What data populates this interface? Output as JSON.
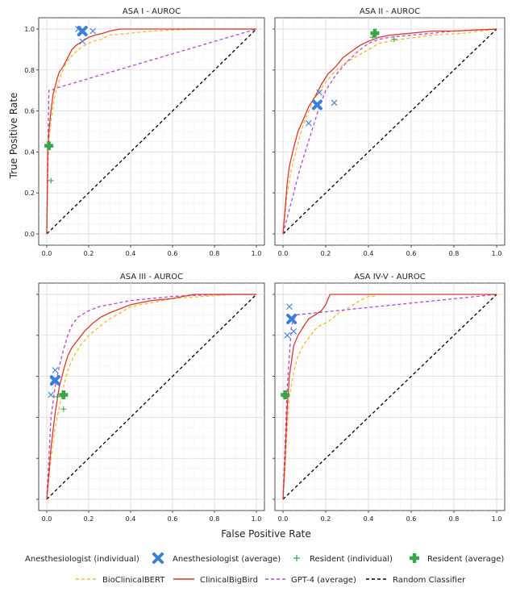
{
  "figure": {
    "xlabel": "False Positive Rate",
    "ylabel": "True Positive Rate"
  },
  "colors": {
    "bioclinicalbert": "#f5b82e",
    "clinicalbigbird": "#d9372b",
    "gpt4": "#b04ad6",
    "random": "#000000",
    "anesthesiologist": "#3b7fd8",
    "resident": "#3aa64a"
  },
  "legend": {
    "row1": [
      {
        "key": "anest_ind",
        "label": "Anesthesiologist (individual)"
      },
      {
        "key": "anest_avg",
        "label": "Anesthesiologist (average)"
      },
      {
        "key": "res_ind",
        "label": "Resident (individual)"
      },
      {
        "key": "res_avg",
        "label": "Resident (average)"
      }
    ],
    "row2": [
      {
        "key": "bioclinicalbert",
        "label": "BioClinicalBERT"
      },
      {
        "key": "clinicalbigbird",
        "label": "ClinicalBigBird"
      },
      {
        "key": "gpt4",
        "label": "GPT-4 (average)"
      },
      {
        "key": "random",
        "label": "Random Classifier"
      }
    ]
  },
  "chart_data": [
    {
      "type": "line",
      "title": "ASA I - AUROC",
      "xlabel": "False Positive Rate",
      "ylabel": "True Positive Rate",
      "xlim": [
        0,
        1
      ],
      "ylim": [
        0,
        1
      ],
      "xticks": [
        0.0,
        0.2,
        0.4,
        0.6,
        0.8,
        1.0
      ],
      "yticks": [
        0.0,
        0.2,
        0.4,
        0.6,
        0.8,
        1.0
      ],
      "show_xtick_labels": true,
      "show_ytick_labels": true,
      "series": [
        {
          "name": "BioClinicalBERT",
          "style": "dashed",
          "x": [
            0,
            0.005,
            0.01,
            0.02,
            0.03,
            0.04,
            0.05,
            0.07,
            0.09,
            0.11,
            0.13,
            0.15,
            0.18,
            0.22,
            0.26,
            0.3,
            0.4,
            0.5,
            0.7,
            1.0
          ],
          "y": [
            0,
            0.3,
            0.45,
            0.55,
            0.62,
            0.68,
            0.72,
            0.78,
            0.83,
            0.86,
            0.88,
            0.9,
            0.92,
            0.94,
            0.95,
            0.97,
            0.98,
            0.99,
            1.0,
            1.0
          ]
        },
        {
          "name": "ClinicalBigBird",
          "style": "solid",
          "x": [
            0,
            0.005,
            0.01,
            0.02,
            0.03,
            0.04,
            0.05,
            0.06,
            0.08,
            0.1,
            0.12,
            0.14,
            0.17,
            0.2,
            0.23,
            0.27,
            0.3,
            0.35,
            0.4,
            0.5,
            0.7,
            1.0
          ],
          "y": [
            0,
            0.4,
            0.5,
            0.6,
            0.68,
            0.72,
            0.76,
            0.79,
            0.82,
            0.86,
            0.9,
            0.92,
            0.94,
            0.96,
            0.97,
            0.98,
            0.99,
            1.0,
            1.0,
            1.0,
            1.0,
            1.0
          ]
        },
        {
          "name": "GPT-4 (average)",
          "style": "dashed",
          "x": [
            0,
            0.01,
            0.02,
            0.04,
            1.0
          ],
          "y": [
            0,
            0.7,
            0.7,
            0.71,
            1.0
          ]
        },
        {
          "name": "Random Classifier",
          "style": "dashed",
          "x": [
            0,
            1
          ],
          "y": [
            0,
            1
          ]
        }
      ],
      "anesthesiologist_individual": [
        [
          0.15,
          1.0
        ],
        [
          0.17,
          0.94
        ],
        [
          0.22,
          0.99
        ]
      ],
      "anesthesiologist_average": [
        [
          0.17,
          0.99
        ]
      ],
      "resident_individual": [
        [
          0.02,
          0.26
        ],
        [
          0.01,
          0.43
        ]
      ],
      "resident_average": [
        [
          0.01,
          0.43
        ]
      ]
    },
    {
      "type": "line",
      "title": "ASA II - AUROC",
      "xlabel": "False Positive Rate",
      "ylabel": "True Positive Rate",
      "xlim": [
        0,
        1
      ],
      "ylim": [
        0,
        1
      ],
      "xticks": [
        0.0,
        0.2,
        0.4,
        0.6,
        0.8,
        1.0
      ],
      "yticks": [
        0.0,
        0.2,
        0.4,
        0.6,
        0.8,
        1.0
      ],
      "show_xtick_labels": true,
      "show_ytick_labels": false,
      "series": [
        {
          "name": "BioClinicalBERT",
          "style": "dashed",
          "x": [
            0,
            0.01,
            0.02,
            0.04,
            0.06,
            0.08,
            0.1,
            0.13,
            0.16,
            0.2,
            0.25,
            0.3,
            0.35,
            0.4,
            0.45,
            0.55,
            0.7,
            0.85,
            1.0
          ],
          "y": [
            0,
            0.1,
            0.2,
            0.32,
            0.4,
            0.48,
            0.55,
            0.62,
            0.68,
            0.74,
            0.8,
            0.84,
            0.87,
            0.9,
            0.93,
            0.95,
            0.97,
            0.98,
            1.0
          ]
        },
        {
          "name": "ClinicalBigBird",
          "style": "solid",
          "x": [
            0,
            0.01,
            0.02,
            0.03,
            0.05,
            0.07,
            0.1,
            0.12,
            0.15,
            0.18,
            0.21,
            0.25,
            0.28,
            0.32,
            0.36,
            0.4,
            0.45,
            0.5,
            0.6,
            0.7,
            0.8,
            1.0
          ],
          "y": [
            0,
            0.12,
            0.25,
            0.33,
            0.42,
            0.5,
            0.57,
            0.62,
            0.67,
            0.73,
            0.78,
            0.82,
            0.86,
            0.89,
            0.92,
            0.94,
            0.96,
            0.97,
            0.98,
            0.99,
            0.99,
            1.0
          ]
        },
        {
          "name": "GPT-4 (average)",
          "style": "dashed",
          "x": [
            0,
            0.02,
            0.05,
            0.08,
            0.11,
            0.14,
            0.17,
            0.2,
            0.25,
            0.3,
            0.35,
            0.4,
            0.45,
            0.5,
            0.6,
            0.7,
            0.8,
            0.9,
            1.0
          ],
          "y": [
            0,
            0.08,
            0.2,
            0.32,
            0.42,
            0.52,
            0.62,
            0.7,
            0.78,
            0.84,
            0.89,
            0.93,
            0.95,
            0.96,
            0.97,
            0.98,
            0.99,
            0.995,
            1.0
          ]
        },
        {
          "name": "Random Classifier",
          "style": "dashed",
          "x": [
            0,
            1
          ],
          "y": [
            0,
            1
          ]
        }
      ],
      "anesthesiologist_individual": [
        [
          0.12,
          0.54
        ],
        [
          0.17,
          0.69
        ],
        [
          0.24,
          0.64
        ]
      ],
      "anesthesiologist_average": [
        [
          0.16,
          0.63
        ]
      ],
      "resident_individual": [
        [
          0.42,
          0.96
        ],
        [
          0.52,
          0.95
        ]
      ],
      "resident_average": [
        [
          0.43,
          0.98
        ]
      ]
    },
    {
      "type": "line",
      "title": "ASA III - AUROC",
      "xlabel": "False Positive Rate",
      "ylabel": "True Positive Rate",
      "xlim": [
        0,
        1
      ],
      "ylim": [
        0,
        1
      ],
      "xticks": [
        0.0,
        0.2,
        0.4,
        0.6,
        0.8,
        1.0
      ],
      "yticks": [
        0.0,
        0.2,
        0.4,
        0.6,
        0.8,
        1.0
      ],
      "show_xtick_labels": true,
      "show_ytick_labels": false,
      "series": [
        {
          "name": "BioClinicalBERT",
          "style": "dashed",
          "x": [
            0,
            0.01,
            0.02,
            0.04,
            0.06,
            0.08,
            0.1,
            0.13,
            0.16,
            0.2,
            0.25,
            0.3,
            0.35,
            0.4,
            0.5,
            0.6,
            0.75,
            0.9,
            1.0
          ],
          "y": [
            0,
            0.1,
            0.2,
            0.35,
            0.45,
            0.55,
            0.63,
            0.7,
            0.75,
            0.8,
            0.84,
            0.88,
            0.91,
            0.94,
            0.96,
            0.98,
            0.99,
            1.0,
            1.0
          ]
        },
        {
          "name": "ClinicalBigBird",
          "style": "solid",
          "x": [
            0,
            0.01,
            0.02,
            0.04,
            0.06,
            0.08,
            0.1,
            0.12,
            0.15,
            0.18,
            0.22,
            0.26,
            0.3,
            0.35,
            0.4,
            0.5,
            0.6,
            0.7,
            0.85,
            1.0
          ],
          "y": [
            0,
            0.12,
            0.25,
            0.42,
            0.55,
            0.63,
            0.7,
            0.74,
            0.78,
            0.82,
            0.86,
            0.89,
            0.91,
            0.93,
            0.95,
            0.97,
            0.98,
            1.0,
            1.0,
            1.0
          ]
        },
        {
          "name": "GPT-4 (average)",
          "style": "dashed",
          "x": [
            0,
            0.01,
            0.02,
            0.04,
            0.06,
            0.08,
            0.1,
            0.12,
            0.15,
            0.2,
            0.25,
            0.3,
            0.4,
            0.5,
            0.6,
            0.7,
            0.85,
            1.0
          ],
          "y": [
            0,
            0.2,
            0.4,
            0.55,
            0.65,
            0.73,
            0.8,
            0.85,
            0.89,
            0.92,
            0.94,
            0.95,
            0.97,
            0.98,
            0.99,
            0.995,
            1.0,
            1.0
          ]
        },
        {
          "name": "Random Classifier",
          "style": "dashed",
          "x": [
            0,
            1
          ],
          "y": [
            0,
            1
          ]
        }
      ],
      "anesthesiologist_individual": [
        [
          0.04,
          0.63
        ],
        [
          0.03,
          0.58
        ],
        [
          0.02,
          0.51
        ]
      ],
      "anesthesiologist_average": [
        [
          0.04,
          0.58
        ]
      ],
      "resident_individual": [
        [
          0.08,
          0.44
        ],
        [
          0.05,
          0.5
        ]
      ],
      "resident_average": [
        [
          0.08,
          0.51
        ]
      ]
    },
    {
      "type": "line",
      "title": "ASA IV-V - AUROC",
      "xlabel": "False Positive Rate",
      "ylabel": "True Positive Rate",
      "xlim": [
        0,
        1
      ],
      "ylim": [
        0,
        1
      ],
      "xticks": [
        0.0,
        0.2,
        0.4,
        0.6,
        0.8,
        1.0
      ],
      "yticks": [
        0.0,
        0.2,
        0.4,
        0.6,
        0.8,
        1.0
      ],
      "show_xtick_labels": true,
      "show_ytick_labels": false,
      "series": [
        {
          "name": "BioClinicalBERT",
          "style": "dashed",
          "x": [
            0,
            0.01,
            0.02,
            0.03,
            0.05,
            0.07,
            0.1,
            0.13,
            0.16,
            0.2,
            0.23,
            0.26,
            0.3,
            0.33,
            0.36,
            0.4,
            0.43
          ],
          "y": [
            0,
            0.15,
            0.35,
            0.5,
            0.62,
            0.7,
            0.76,
            0.8,
            0.84,
            0.86,
            0.88,
            0.91,
            0.93,
            0.95,
            0.97,
            0.99,
            0.99
          ]
        },
        {
          "name": "ClinicalBigBird",
          "style": "solid",
          "x": [
            0,
            0.01,
            0.02,
            0.03,
            0.05,
            0.07,
            0.1,
            0.12,
            0.15,
            0.18,
            0.2,
            0.22,
            0.25,
            0.5,
            0.75,
            1.0
          ],
          "y": [
            0,
            0.2,
            0.45,
            0.6,
            0.75,
            0.8,
            0.85,
            0.88,
            0.9,
            0.92,
            0.95,
            1.0,
            1.0,
            1.0,
            1.0,
            1.0
          ]
        },
        {
          "name": "GPT-4 (average)",
          "style": "dashed",
          "x": [
            0,
            0.02,
            0.04,
            0.06,
            1.0
          ],
          "y": [
            0,
            0.55,
            0.85,
            0.9,
            1.0
          ]
        },
        {
          "name": "Random Classifier",
          "style": "dashed",
          "x": [
            0,
            1
          ],
          "y": [
            0,
            1
          ]
        }
      ],
      "anesthesiologist_individual": [
        [
          0.03,
          0.94
        ],
        [
          0.02,
          0.8
        ],
        [
          0.05,
          0.82
        ]
      ],
      "anesthesiologist_average": [
        [
          0.04,
          0.88
        ]
      ],
      "resident_individual": [
        [
          0.01,
          0.5
        ]
      ],
      "resident_average": [
        [
          0.01,
          0.51
        ]
      ]
    }
  ]
}
